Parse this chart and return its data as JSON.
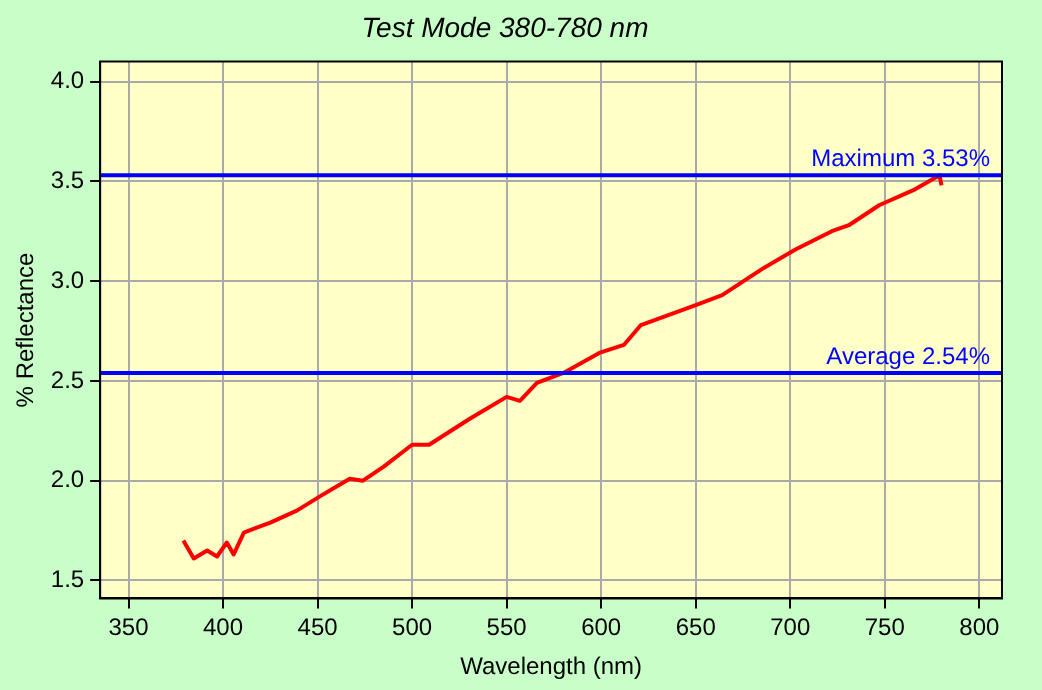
{
  "chart_data": {
    "type": "line",
    "title": "Test Mode 380-780 nm",
    "xlabel": "Wavelength (nm)",
    "ylabel": "% Reflectance",
    "xlim": [
      335,
      812
    ],
    "xticks": [
      350,
      400,
      450,
      500,
      550,
      600,
      650,
      700,
      750,
      800
    ],
    "ylim": [
      1.41,
      4.1
    ],
    "yticks": [
      {
        "value": 1.5,
        "label": "1.5"
      },
      {
        "value": 2.0,
        "label": "2.0"
      },
      {
        "value": 2.5,
        "label": "2.5"
      },
      {
        "value": 3.0,
        "label": "3.0"
      },
      {
        "value": 3.5,
        "label": "3.5"
      },
      {
        "value": 4.0,
        "label": "4.0"
      }
    ],
    "grid": true,
    "legend": false,
    "marker": "none",
    "line_style": "solid",
    "series": [
      {
        "color": "#ff0000",
        "x": [
          379,
          384.5,
          391.6,
          396.8,
          402,
          405.6,
          411,
          425,
          439,
          451,
          467,
          474,
          485,
          500,
          509,
          530.5,
          550,
          557,
          566,
          580,
          599,
          612,
          621,
          650,
          664,
          685,
          703,
          722,
          731,
          747,
          766,
          779,
          780
        ],
        "values": [
          1.7,
          1.61,
          1.65,
          1.62,
          1.69,
          1.63,
          1.74,
          1.79,
          1.85,
          1.92,
          2.01,
          2.0,
          2.07,
          2.18,
          2.18,
          2.31,
          2.42,
          2.4,
          2.49,
          2.54,
          2.64,
          2.68,
          2.78,
          2.88,
          2.93,
          3.06,
          3.16,
          3.25,
          3.28,
          3.38,
          3.46,
          3.53,
          3.48
        ]
      }
    ],
    "ref_lines": [
      {
        "axis": "y",
        "value": 3.53,
        "label": "Maximum 3.53%",
        "color": "#0000ff"
      },
      {
        "axis": "y",
        "value": 2.54,
        "label": "Average 2.54%",
        "color": "#0000ff"
      }
    ]
  }
}
